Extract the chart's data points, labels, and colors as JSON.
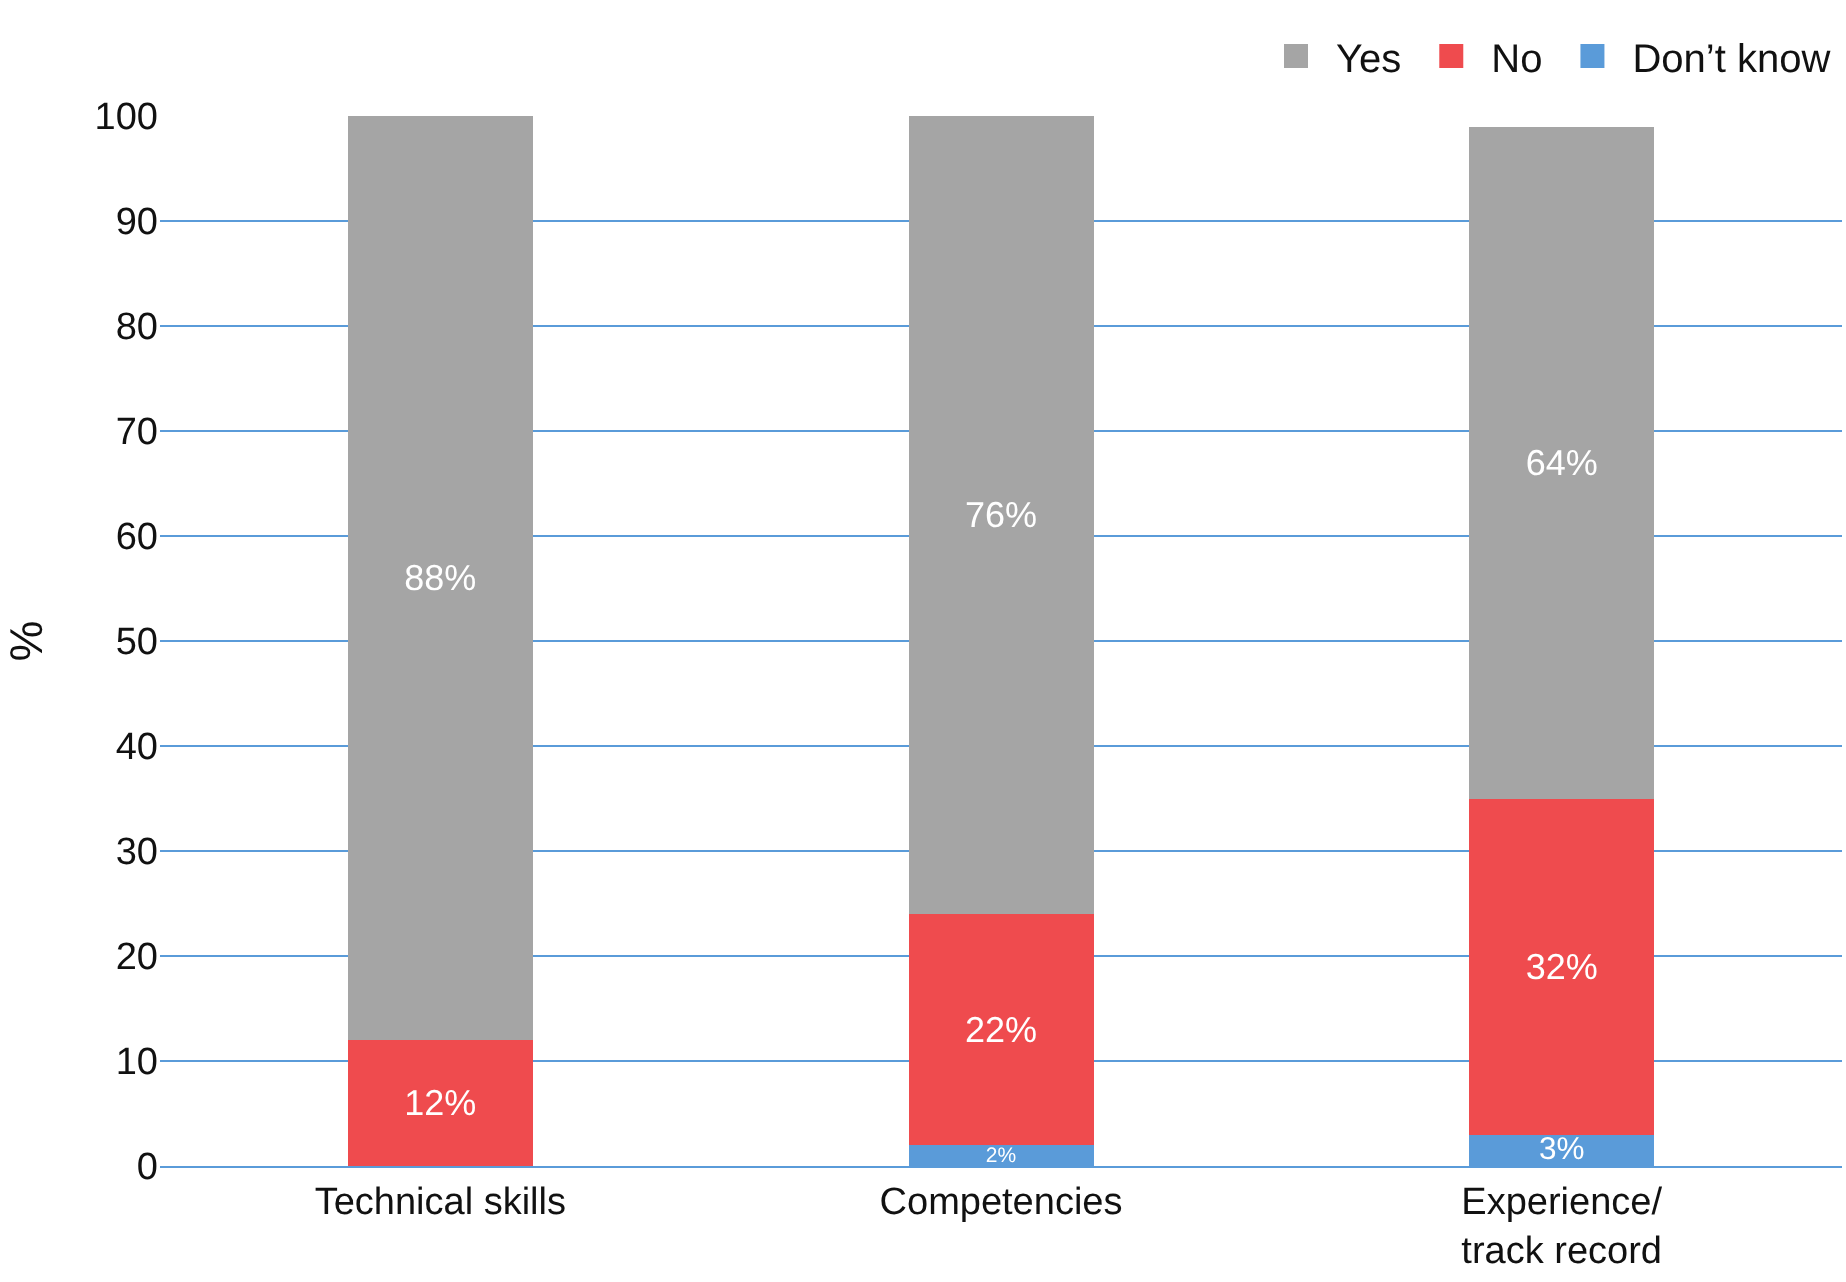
{
  "chart_data": {
    "type": "bar",
    "stacked": true,
    "ylabel": "%",
    "categories": [
      "Technical skills",
      "Competencies",
      "Experience/\ntrack record"
    ],
    "series": [
      {
        "name": "Don’t know",
        "color": "#5a9bd9",
        "values": [
          0,
          2,
          3
        ],
        "value_labels": [
          null,
          "2%",
          "3%"
        ]
      },
      {
        "name": "No",
        "color": "#ef4b4e",
        "values": [
          12,
          22,
          32
        ],
        "value_labels": [
          "12%",
          "22%",
          "32%"
        ]
      },
      {
        "name": "Yes",
        "color": "#a5a5a5",
        "values": [
          88,
          76,
          64
        ],
        "value_labels": [
          "88%",
          "76%",
          "64%"
        ]
      }
    ],
    "ylim": [
      0,
      100
    ],
    "yticks": [
      0,
      10,
      20,
      30,
      40,
      50,
      60,
      70,
      80,
      90,
      100
    ],
    "grid": "y",
    "legend": "top right"
  }
}
